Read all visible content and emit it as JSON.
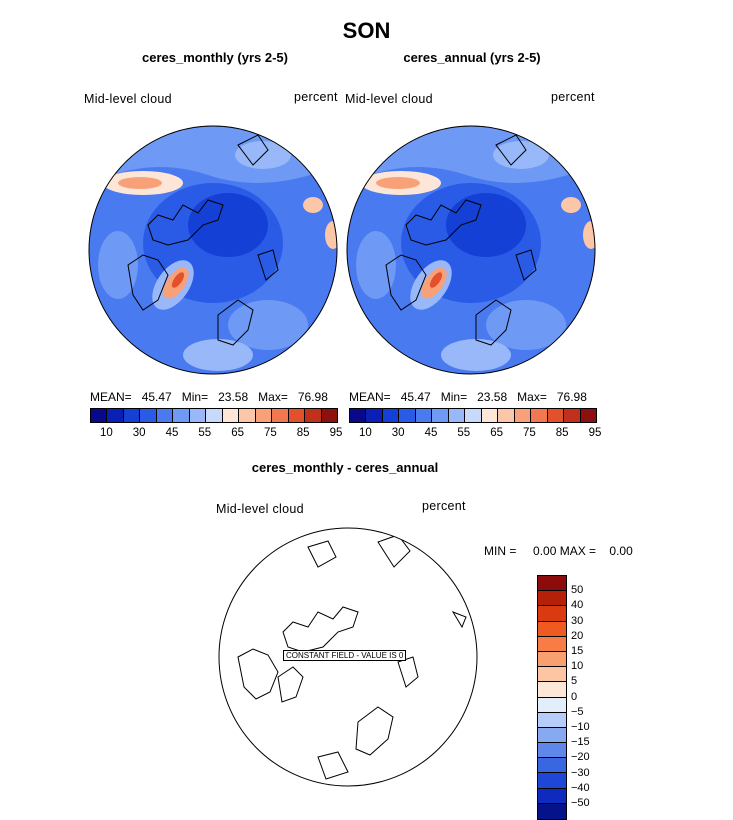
{
  "title": "SON",
  "panels": [
    {
      "title": "ceres_monthly (yrs 2-5)",
      "field_label": "Mid-level cloud",
      "units": "percent",
      "stats": {
        "mean_label": "MEAN=",
        "mean": "45.47",
        "min_label": "Min=",
        "min": "23.58",
        "max_label": "Max=",
        "max": "76.98"
      }
    },
    {
      "title": "ceres_annual (yrs 2-5)",
      "field_label": "Mid-level cloud",
      "units": "percent",
      "stats": {
        "mean_label": "MEAN=",
        "mean": "45.47",
        "min_label": "Min=",
        "min": "23.58",
        "max_label": "Max=",
        "max": "76.98"
      }
    }
  ],
  "colorbar": {
    "colors": [
      "#08088a",
      "#0a1fb5",
      "#1440d6",
      "#2a5be6",
      "#4a7af0",
      "#6e99f5",
      "#98b8fa",
      "#c7dafc",
      "#fde6d8",
      "#fbc7a8",
      "#f8a078",
      "#f17850",
      "#e2502c",
      "#c0301a",
      "#8c1010"
    ],
    "ticks": [
      "10",
      "30",
      "45",
      "55",
      "65",
      "75",
      "85",
      "95"
    ]
  },
  "diff_panel": {
    "title": "ceres_monthly - ceres_annual",
    "field_label": "Mid-level cloud",
    "units": "percent",
    "stats": {
      "min_label": "MIN =",
      "min": "0.00",
      "max_label": "MAX =",
      "max": "0.00"
    },
    "constant_label": "CONSTANT FIELD - VALUE IS 0",
    "colorbar": {
      "colors": [
        "#8c0c0c",
        "#b52008",
        "#d93a10",
        "#ef5a20",
        "#f77c45",
        "#f9a070",
        "#fcc6a4",
        "#fde8d8",
        "#e3eefc",
        "#b6cdfa",
        "#87a9f2",
        "#5f87ea",
        "#3a66e2",
        "#1f47d6",
        "#0e2bbd",
        "#05138a"
      ],
      "ticks": [
        "50",
        "40",
        "30",
        "20",
        "15",
        "10",
        "5",
        "0",
        "−5",
        "−10",
        "−15",
        "−20",
        "−30",
        "−40",
        "−50"
      ]
    }
  }
}
